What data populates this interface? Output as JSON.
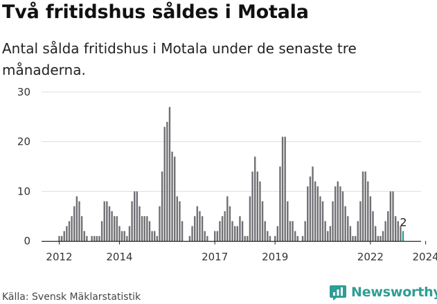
{
  "header": {
    "title": "Två fritidshus såldes i Motala",
    "subtitle": "Antal sålda fritidshus i Motala under de senaste tre månaderna."
  },
  "footer": {
    "source": "Källa: Svensk Mäklarstatistik",
    "logo_text": "Newsworthy"
  },
  "colors": {
    "bar": "#707074",
    "highlight": "#2e9e94",
    "grid": "#dddddd",
    "axis": "#222222"
  },
  "chart_data": {
    "type": "bar",
    "title": "Två fritidshus såldes i Motala",
    "xlabel": "",
    "ylabel": "",
    "ylim": [
      0,
      30
    ],
    "y_ticks": [
      0,
      10,
      20,
      30
    ],
    "x_tick_labels": [
      "2012",
      "2014",
      "2017",
      "2019",
      "2022",
      "2024"
    ],
    "x_tick_indices": [
      0,
      24,
      62,
      86,
      124,
      146
    ],
    "start": "2011-12",
    "last_value_label": "2",
    "values": [
      1,
      1,
      2,
      3,
      4,
      5,
      7,
      9,
      8,
      5,
      2,
      1,
      0,
      1,
      1,
      1,
      1,
      4,
      8,
      8,
      7,
      6,
      5,
      5,
      3,
      2,
      2,
      1,
      3,
      8,
      10,
      10,
      7,
      5,
      5,
      5,
      4,
      2,
      2,
      1,
      7,
      14,
      23,
      24,
      27,
      18,
      17,
      9,
      8,
      4,
      0,
      0,
      1,
      3,
      5,
      7,
      6,
      5,
      2,
      1,
      0,
      0,
      2,
      2,
      4,
      5,
      6,
      9,
      7,
      4,
      3,
      3,
      5,
      4,
      1,
      1,
      9,
      14,
      17,
      14,
      12,
      8,
      4,
      2,
      1,
      0,
      1,
      3,
      15,
      21,
      21,
      8,
      4,
      4,
      2,
      1,
      0,
      1,
      4,
      11,
      13,
      15,
      12,
      11,
      9,
      8,
      4,
      2,
      3,
      8,
      11,
      12,
      11,
      10,
      7,
      5,
      3,
      1,
      1,
      4,
      8,
      14,
      14,
      12,
      9,
      6,
      3,
      1,
      1,
      2,
      4,
      6,
      10,
      10,
      5,
      4,
      3,
      2
    ]
  }
}
